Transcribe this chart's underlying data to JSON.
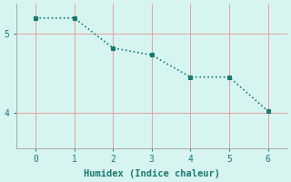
{
  "x": [
    0,
    1,
    2,
    3,
    4,
    5,
    6
  ],
  "y": [
    5.2,
    5.2,
    4.82,
    4.73,
    4.45,
    4.45,
    4.02
  ],
  "line_color": "#1a7a6e",
  "marker_color": "#1a7a6e",
  "bg_color": "#d6f5f0",
  "grid_color": "#e8a0a0",
  "spine_color": "#aaaaaa",
  "xlabel": "Humidex (Indice chaleur)",
  "xlim": [
    -0.5,
    6.5
  ],
  "ylim": [
    3.55,
    5.38
  ],
  "yticks": [
    4,
    5
  ],
  "xticks": [
    0,
    1,
    2,
    3,
    4,
    5,
    6
  ],
  "xlabel_fontsize": 7.5,
  "tick_fontsize": 7,
  "line_width": 1.2,
  "marker_size": 3
}
